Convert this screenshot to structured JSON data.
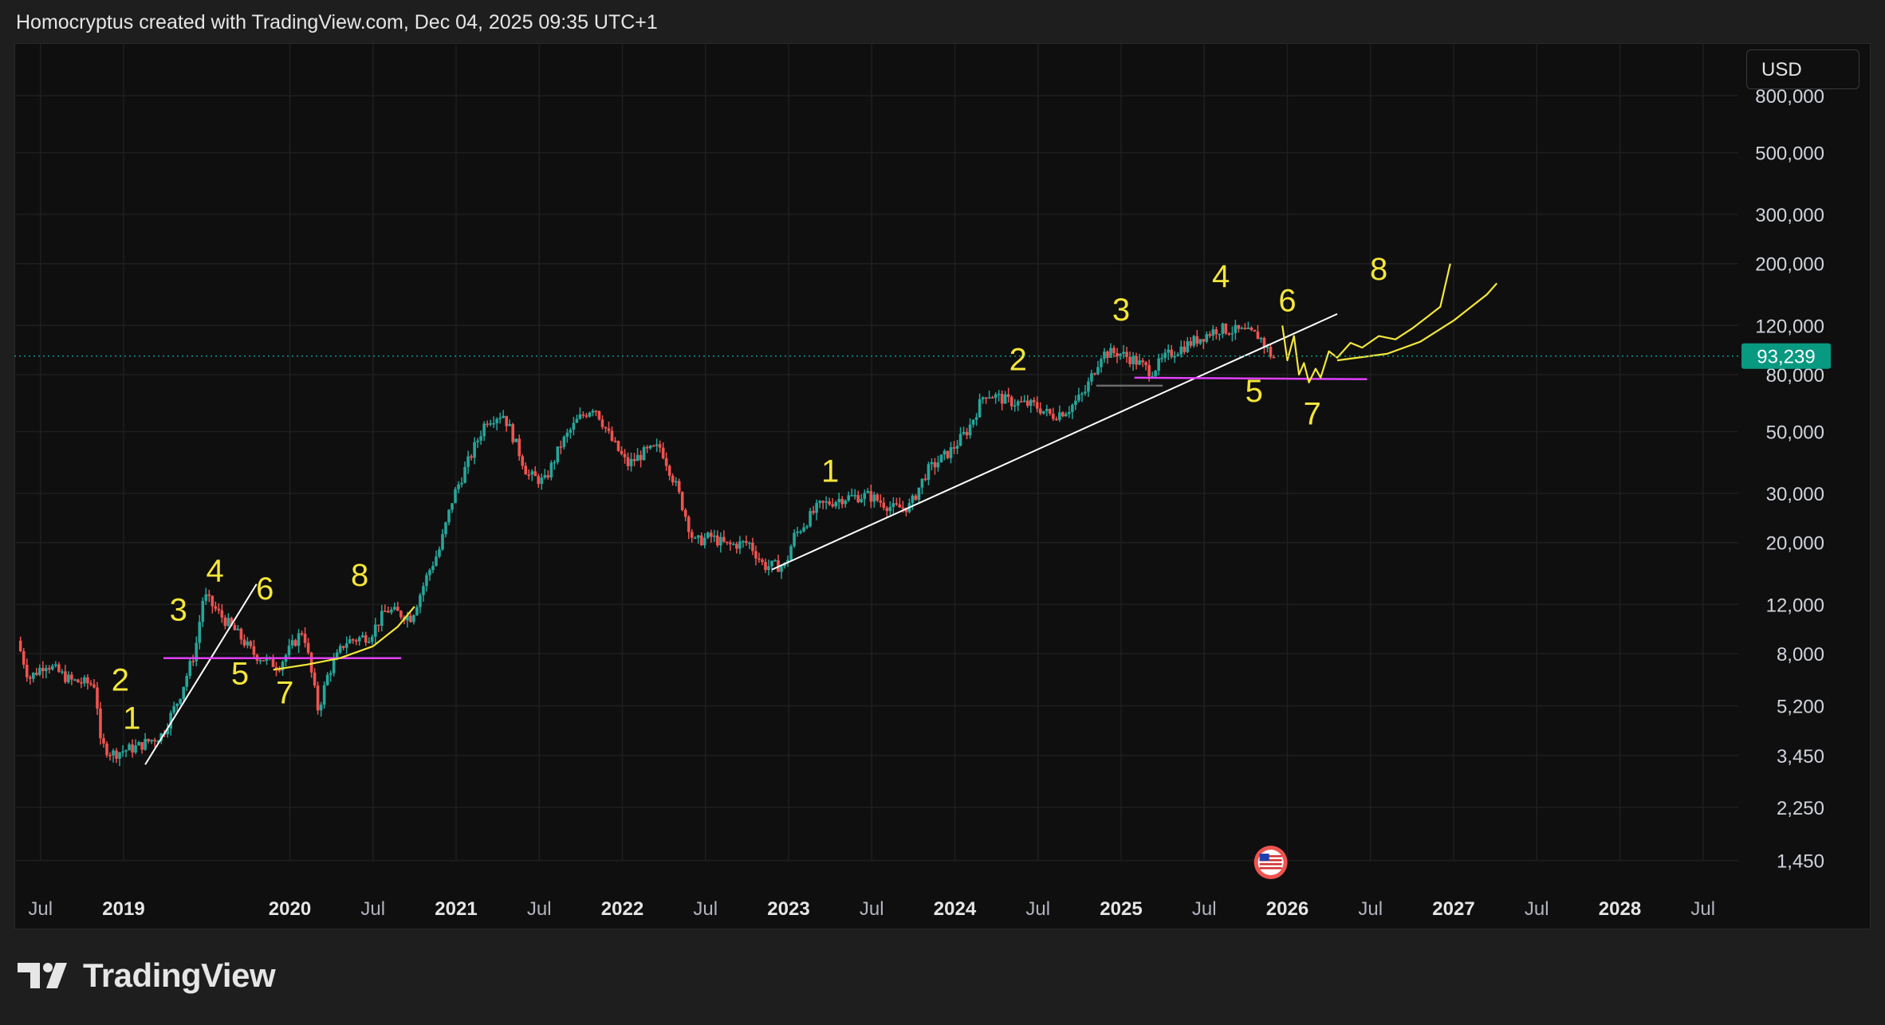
{
  "header": {
    "text": "Homocryptus created with TradingView.com, Dec 04, 2025 09:35 UTC+1"
  },
  "currency_button": {
    "label": "USD"
  },
  "brand": {
    "name": "TradingView"
  },
  "colors": {
    "up": "#26a69a",
    "down": "#ef5350",
    "annotation": "#f5e63a",
    "trendline": "#ffffff",
    "support": "#e040fb",
    "price_badge": "#089981",
    "background": "#0f0f0f"
  },
  "chart_data": {
    "type": "candlestick",
    "scale": "log",
    "y_ticks": [
      "1,450",
      "2,250",
      "3,450",
      "5,200",
      "8,000",
      "12,000",
      "20,000",
      "30,000",
      "50,000",
      "80,000",
      "120,000",
      "200,000",
      "300,000",
      "500,000",
      "800,000"
    ],
    "y_tick_values": [
      1450,
      2250,
      3450,
      5200,
      8000,
      12000,
      20000,
      30000,
      50000,
      80000,
      120000,
      200000,
      300000,
      500000,
      800000
    ],
    "x_ticks": [
      {
        "label": "Jul",
        "t": 2018.5,
        "bold": false
      },
      {
        "label": "2019",
        "t": 2019.0,
        "bold": true
      },
      {
        "label": "2020",
        "t": 2020.0,
        "bold": true
      },
      {
        "label": "Jul",
        "t": 2020.5,
        "bold": false
      },
      {
        "label": "2021",
        "t": 2021.0,
        "bold": true
      },
      {
        "label": "Jul",
        "t": 2021.5,
        "bold": false
      },
      {
        "label": "2022",
        "t": 2022.0,
        "bold": true
      },
      {
        "label": "Jul",
        "t": 2022.5,
        "bold": false
      },
      {
        "label": "2023",
        "t": 2023.0,
        "bold": true
      },
      {
        "label": "Jul",
        "t": 2023.5,
        "bold": false
      },
      {
        "label": "2024",
        "t": 2024.0,
        "bold": true
      },
      {
        "label": "Jul",
        "t": 2024.5,
        "bold": false
      },
      {
        "label": "2025",
        "t": 2025.0,
        "bold": true
      },
      {
        "label": "Jul",
        "t": 2025.5,
        "bold": false
      },
      {
        "label": "2026",
        "t": 2026.0,
        "bold": true
      },
      {
        "label": "Jul",
        "t": 2026.5,
        "bold": false
      },
      {
        "label": "2027",
        "t": 2027.0,
        "bold": true
      },
      {
        "label": "Jul",
        "t": 2027.5,
        "bold": false
      },
      {
        "label": "2028",
        "t": 2028.0,
        "bold": true
      },
      {
        "label": "Jul",
        "t": 2028.5,
        "bold": false
      }
    ],
    "last_price": 93239,
    "last_price_label": "93,239",
    "price_path": [
      [
        2018.38,
        8900
      ],
      [
        2018.45,
        6500
      ],
      [
        2018.55,
        7400
      ],
      [
        2018.7,
        6400
      ],
      [
        2018.85,
        6200
      ],
      [
        2018.88,
        3800
      ],
      [
        2018.95,
        3500
      ],
      [
        2019.1,
        3700
      ],
      [
        2019.25,
        4100
      ],
      [
        2019.35,
        5500
      ],
      [
        2019.45,
        8200
      ],
      [
        2019.5,
        13000
      ],
      [
        2019.6,
        11000
      ],
      [
        2019.7,
        9500
      ],
      [
        2019.8,
        8000
      ],
      [
        2019.95,
        7200
      ],
      [
        2020.1,
        9800
      ],
      [
        2020.19,
        5000
      ],
      [
        2020.25,
        6800
      ],
      [
        2020.35,
        8800
      ],
      [
        2020.5,
        9300
      ],
      [
        2020.6,
        11500
      ],
      [
        2020.75,
        10800
      ],
      [
        2020.85,
        15500
      ],
      [
        2020.92,
        19000
      ],
      [
        2021.0,
        29000
      ],
      [
        2021.1,
        40000
      ],
      [
        2021.2,
        55000
      ],
      [
        2021.3,
        58000
      ],
      [
        2021.35,
        50000
      ],
      [
        2021.45,
        35000
      ],
      [
        2021.55,
        33000
      ],
      [
        2021.65,
        45000
      ],
      [
        2021.75,
        55000
      ],
      [
        2021.85,
        62000
      ],
      [
        2021.95,
        47000
      ],
      [
        2022.05,
        38000
      ],
      [
        2022.15,
        42000
      ],
      [
        2022.25,
        44000
      ],
      [
        2022.35,
        31000
      ],
      [
        2022.45,
        20000
      ],
      [
        2022.55,
        21000
      ],
      [
        2022.65,
        19500
      ],
      [
        2022.78,
        20000
      ],
      [
        2022.87,
        16500
      ],
      [
        2023.0,
        16500
      ],
      [
        2023.05,
        21000
      ],
      [
        2023.2,
        27000
      ],
      [
        2023.35,
        29000
      ],
      [
        2023.5,
        29500
      ],
      [
        2023.65,
        26500
      ],
      [
        2023.75,
        27000
      ],
      [
        2023.85,
        36000
      ],
      [
        2024.0,
        43000
      ],
      [
        2024.1,
        51000
      ],
      [
        2024.2,
        69000
      ],
      [
        2024.35,
        64000
      ],
      [
        2024.5,
        62000
      ],
      [
        2024.6,
        57000
      ],
      [
        2024.7,
        60000
      ],
      [
        2024.8,
        69000
      ],
      [
        2024.9,
        95000
      ],
      [
        2025.0,
        96000
      ],
      [
        2025.1,
        90000
      ],
      [
        2025.2,
        82000
      ],
      [
        2025.3,
        94000
      ],
      [
        2025.45,
        105000
      ],
      [
        2025.6,
        117000
      ],
      [
        2025.75,
        114000
      ],
      [
        2025.85,
        110000
      ],
      [
        2025.93,
        92000
      ]
    ],
    "annotations": [
      {
        "type": "line",
        "role": "trendline",
        "from": [
          2019.13,
          3200
        ],
        "to": [
          2019.8,
          14200
        ]
      },
      {
        "type": "line",
        "role": "trendline",
        "from": [
          2022.9,
          16000
        ],
        "to": [
          2026.3,
          132000
        ]
      },
      {
        "type": "line",
        "role": "support",
        "from": [
          2019.24,
          7700
        ],
        "to": [
          2020.67,
          7700
        ]
      },
      {
        "type": "line",
        "role": "support",
        "from": [
          2025.08,
          78000
        ],
        "to": [
          2026.48,
          77000
        ]
      },
      {
        "type": "line",
        "role": "grey-level",
        "from": [
          2024.85,
          73000
        ],
        "to": [
          2025.25,
          73000
        ]
      },
      {
        "type": "label",
        "text": "1",
        "at": [
          2019.05,
          4300
        ]
      },
      {
        "type": "label",
        "text": "2",
        "at": [
          2018.98,
          5900
        ]
      },
      {
        "type": "label",
        "text": "3",
        "at": [
          2019.33,
          10500
        ]
      },
      {
        "type": "label",
        "text": "4",
        "at": [
          2019.55,
          14500
        ]
      },
      {
        "type": "label",
        "text": "5",
        "at": [
          2019.7,
          6200
        ]
      },
      {
        "type": "label",
        "text": "6",
        "at": [
          2019.85,
          12500
        ]
      },
      {
        "type": "label",
        "text": "7",
        "at": [
          2019.97,
          5300
        ]
      },
      {
        "type": "label",
        "text": "8",
        "at": [
          2020.42,
          14000
        ]
      },
      {
        "type": "label",
        "text": "1",
        "at": [
          2023.25,
          33000
        ]
      },
      {
        "type": "label",
        "text": "2",
        "at": [
          2024.38,
          83000
        ]
      },
      {
        "type": "label",
        "text": "3",
        "at": [
          2025.0,
          125000
        ]
      },
      {
        "type": "label",
        "text": "4",
        "at": [
          2025.6,
          165000
        ]
      },
      {
        "type": "label",
        "text": "5",
        "at": [
          2025.8,
          64000
        ]
      },
      {
        "type": "label",
        "text": "6",
        "at": [
          2026.0,
          135000
        ]
      },
      {
        "type": "label",
        "text": "7",
        "at": [
          2026.15,
          53000
        ]
      },
      {
        "type": "label",
        "text": "8",
        "at": [
          2026.55,
          175000
        ]
      }
    ]
  }
}
